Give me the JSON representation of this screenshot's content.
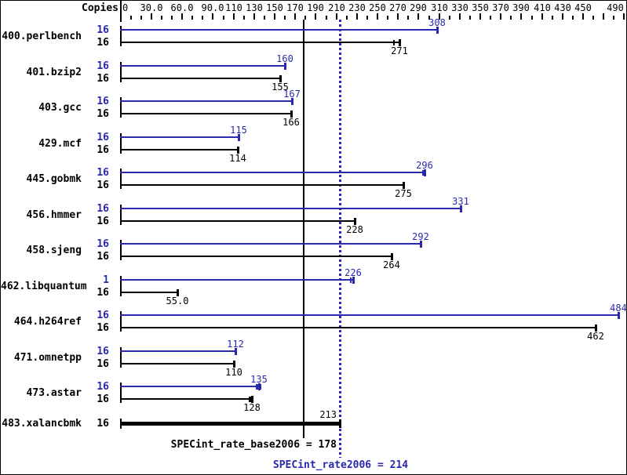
{
  "header": {
    "copies": "Copies"
  },
  "colors": {
    "peak": "#2929ad",
    "base": "#000000",
    "background": "#ffffff"
  },
  "summary": {
    "base_text": "SPECint_rate_base2006 = 178",
    "peak_text": "SPECint_rate2006 = 214"
  },
  "chart_data": {
    "type": "bar",
    "orientation": "horizontal",
    "title": "",
    "xlabel": "",
    "xlim": [
      0,
      490
    ],
    "grid": false,
    "legend_position": "none",
    "axis_tick_labels": [
      {
        "v": 0,
        "text": "0"
      },
      {
        "v": 30,
        "text": "30.0"
      },
      {
        "v": 60,
        "text": "60.0"
      },
      {
        "v": 90,
        "text": "90.0"
      },
      {
        "v": 110,
        "text": "110"
      },
      {
        "v": 130,
        "text": "130"
      },
      {
        "v": 150,
        "text": "150"
      },
      {
        "v": 170,
        "text": "170"
      },
      {
        "v": 190,
        "text": "190"
      },
      {
        "v": 210,
        "text": "210"
      },
      {
        "v": 230,
        "text": "230"
      },
      {
        "v": 250,
        "text": "250"
      },
      {
        "v": 270,
        "text": "270"
      },
      {
        "v": 290,
        "text": "290"
      },
      {
        "v": 310,
        "text": "310"
      },
      {
        "v": 330,
        "text": "330"
      },
      {
        "v": 350,
        "text": "350"
      },
      {
        "v": 370,
        "text": "370"
      },
      {
        "v": 390,
        "text": "390"
      },
      {
        "v": 410,
        "text": "410"
      },
      {
        "v": 430,
        "text": "430"
      },
      {
        "v": 450,
        "text": "450"
      },
      {
        "v": 490,
        "text": "490"
      }
    ],
    "major_tick_values": [
      0,
      30,
      60,
      90,
      110,
      130,
      150,
      170,
      190,
      210,
      230,
      250,
      270,
      290,
      310,
      330,
      350,
      370,
      390,
      410,
      430,
      450,
      470,
      490
    ],
    "minor_tick_step": 10,
    "categories": [
      "400.perlbench",
      "401.bzip2",
      "403.gcc",
      "429.mcf",
      "445.gobmk",
      "456.hmmer",
      "458.sjeng",
      "462.libquantum",
      "464.h264ref",
      "471.omnetpp",
      "473.astar",
      "483.xalancbmk"
    ],
    "series": [
      {
        "name": "peak (SPECint_rate2006)",
        "copies": [
          "16",
          "16",
          "16",
          "16",
          "16",
          "16",
          "16",
          "1",
          "16",
          "16",
          "16",
          null
        ],
        "values": [
          308,
          160,
          167,
          115,
          296,
          331,
          292,
          226,
          484,
          112,
          135,
          null
        ],
        "value_labels": [
          "308",
          "160",
          "167",
          "115",
          "296",
          "331",
          "292",
          "226",
          "484",
          "112",
          "135",
          null
        ],
        "extra_run_ticks": [
          null,
          null,
          null,
          null,
          [
            294,
            296.8
          ],
          null,
          null,
          [
            224,
            226.8
          ],
          null,
          null,
          [
            132.5,
            134.3,
            136
          ],
          null
        ]
      },
      {
        "name": "base (SPECint_rate_base2006)",
        "copies": [
          "16",
          "16",
          "16",
          "16",
          "16",
          "16",
          "16",
          "16",
          "16",
          "16",
          "16",
          "16"
        ],
        "values": [
          271,
          155,
          166,
          114,
          275,
          228,
          264,
          55.0,
          462,
          110,
          128,
          213
        ],
        "value_labels": [
          "271",
          "155",
          "166",
          "114",
          "275",
          "228",
          "264",
          "55.0",
          "462",
          "110",
          "128",
          "213"
        ],
        "extra_run_ticks": [
          [
            266,
            271.8
          ],
          null,
          null,
          null,
          null,
          null,
          null,
          null,
          null,
          null,
          [
            125.5,
            127.3,
            129
          ],
          null
        ]
      }
    ],
    "merged_rows": [
      false,
      false,
      false,
      false,
      false,
      false,
      false,
      false,
      false,
      false,
      false,
      true
    ],
    "reference_lines": [
      {
        "value": 178,
        "style": "solid",
        "color": "#000000",
        "label": "SPECint_rate_base2006 = 178"
      },
      {
        "value": 214,
        "style": "dotted",
        "color": "#2929ad",
        "label": "SPECint_rate2006 = 214"
      }
    ]
  }
}
